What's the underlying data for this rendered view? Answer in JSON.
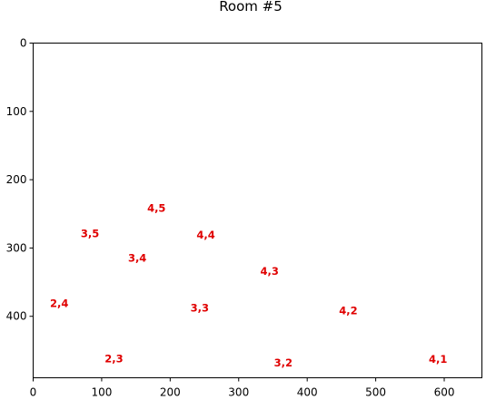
{
  "chart_data": {
    "type": "scatter",
    "title": "Room #5",
    "xlabel": "",
    "ylabel": "",
    "xlim": [
      0,
      655
    ],
    "ylim": [
      490,
      0
    ],
    "y_inverted": true,
    "grid": false,
    "x_ticks": [
      0,
      100,
      200,
      300,
      400,
      500,
      600
    ],
    "y_ticks": [
      0,
      100,
      200,
      300,
      400
    ],
    "label_color": "#e00000",
    "points": [
      {
        "label": "4,5",
        "x": 180,
        "y": 242
      },
      {
        "label": "3,5",
        "x": 83,
        "y": 279
      },
      {
        "label": "4,4",
        "x": 252,
        "y": 281
      },
      {
        "label": "3,4",
        "x": 152,
        "y": 315
      },
      {
        "label": "4,3",
        "x": 345,
        "y": 334
      },
      {
        "label": "2,4",
        "x": 38,
        "y": 381
      },
      {
        "label": "3,3",
        "x": 243,
        "y": 388
      },
      {
        "label": "4,2",
        "x": 460,
        "y": 392
      },
      {
        "label": "2,3",
        "x": 118,
        "y": 462
      },
      {
        "label": "3,2",
        "x": 365,
        "y": 468
      },
      {
        "label": "4,1",
        "x": 591,
        "y": 463
      }
    ]
  }
}
